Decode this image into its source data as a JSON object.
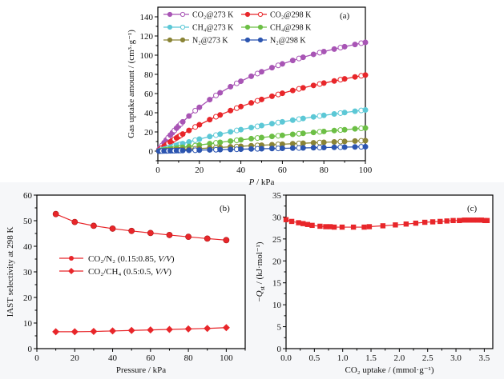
{
  "chart_data": [
    {
      "panel": "a",
      "type": "line",
      "panel_label": "(a)",
      "xlabel_italic": "P",
      "xlabel_rest": " / kPa",
      "ylabel": "Gas uptake amount / (cm³·g⁻¹)",
      "xlim": [
        0,
        100
      ],
      "ylim": [
        -10,
        150
      ],
      "xticks": [
        0,
        20,
        40,
        60,
        80,
        100
      ],
      "yticks": [
        0,
        20,
        40,
        60,
        80,
        100,
        120,
        140
      ],
      "legend_position": "top-left",
      "series": [
        {
          "name": "CO₂@273 K",
          "color": "#a855b5",
          "fit": {
            "qmax": 180,
            "b": 0.017
          },
          "filled_marker": true
        },
        {
          "name": "CO₂@298 K",
          "color": "#e8262a",
          "fit": {
            "qmax": 150,
            "b": 0.0112
          },
          "filled_marker": true
        },
        {
          "name": "CH₄@273 K",
          "color": "#5cc8d6",
          "fit": {
            "qmax": 110,
            "b": 0.0064
          },
          "filled_marker": true
        },
        {
          "name": "CH₄@298 K",
          "color": "#6cbf45",
          "fit": {
            "qmax": 80,
            "b": 0.0043
          },
          "filled_marker": true
        },
        {
          "name": "N₂@273 K",
          "color": "#8a8436",
          "fit": {
            "qmax": 50,
            "b": 0.0028
          },
          "filled_marker": true
        },
        {
          "name": "N₂@298 K",
          "color": "#2c55b0",
          "fit": {
            "qmax": 30,
            "b": 0.0018
          },
          "filled_marker": true
        }
      ],
      "x": [
        0.5,
        1,
        2,
        3,
        4,
        5,
        6,
        7,
        8,
        9,
        10,
        11,
        12,
        15,
        18,
        20,
        25,
        28,
        30,
        35,
        38,
        40,
        45,
        48,
        50,
        55,
        58,
        60,
        65,
        68,
        70,
        75,
        78,
        80,
        85,
        88,
        90,
        95,
        98,
        100
      ]
    },
    {
      "panel": "b",
      "type": "line",
      "panel_label": "(b)",
      "xlabel": "Pressure / kPa",
      "ylabel": "IAST selectivity at 298 K",
      "xlim": [
        0,
        110
      ],
      "ylim": [
        0,
        60
      ],
      "xticks": [
        0,
        20,
        40,
        60,
        80,
        100
      ],
      "yticks": [
        0,
        10,
        20,
        30,
        40,
        50,
        60
      ],
      "legend_position": "center-left",
      "x": [
        10,
        20,
        30,
        40,
        50,
        60,
        70,
        80,
        90,
        100
      ],
      "series": [
        {
          "name": "CO₂/N₂ (0.15:0.85, V/V)",
          "label_main": "CO₂/N₂ (0.15:0.85, ",
          "label_italic": "V/V",
          "label_end": ")",
          "marker": "circle",
          "color": "#e8262a",
          "values": [
            52.6,
            49.5,
            48.0,
            46.9,
            46.0,
            45.2,
            44.4,
            43.7,
            43.0,
            42.4
          ]
        },
        {
          "name": "CO₂/CH₄ (0.5:0.5, V/V)",
          "label_main": "CO₂/CH₄ (0.5:0.5, ",
          "label_italic": "V/V",
          "label_end": ")",
          "marker": "diamond",
          "color": "#e8262a",
          "values": [
            6.6,
            6.6,
            6.7,
            6.9,
            7.1,
            7.3,
            7.5,
            7.7,
            7.9,
            8.2
          ]
        }
      ]
    },
    {
      "panel": "c",
      "type": "line",
      "panel_label": "(c)",
      "xlabel": "CO₂ uptake / (mmol·g⁻¹)",
      "ylabel_pre": "−",
      "ylabel_italic": "Q",
      "ylabel_sub": "st",
      "ylabel_rest": " / (kJ·mol⁻¹)",
      "xlim": [
        0,
        3.65
      ],
      "ylim": [
        0,
        35
      ],
      "xticks": [
        0.0,
        0.5,
        1.0,
        1.5,
        2.0,
        2.5,
        3.0,
        3.5
      ],
      "xtick_labels": [
        "0.0",
        "0.5",
        "1.0",
        "1.5",
        "2.0",
        "2.5",
        "3.0",
        "3.5"
      ],
      "yticks": [
        0,
        5,
        10,
        15,
        20,
        25,
        30,
        35
      ],
      "series": [
        {
          "name": "Qst",
          "marker": "square",
          "color": "#e8262a",
          "x": [
            0.0,
            0.1,
            0.22,
            0.3,
            0.38,
            0.46,
            0.6,
            0.7,
            0.78,
            0.85,
            0.99,
            1.19,
            1.38,
            1.47,
            1.71,
            1.93,
            2.12,
            2.29,
            2.45,
            2.59,
            2.72,
            2.84,
            2.95,
            3.06,
            3.15,
            3.23,
            3.31,
            3.38,
            3.45,
            3.51,
            3.55
          ],
          "values": [
            29.4,
            29.0,
            28.7,
            28.5,
            28.3,
            28.1,
            27.9,
            27.8,
            27.8,
            27.7,
            27.7,
            27.7,
            27.7,
            27.8,
            28.0,
            28.2,
            28.4,
            28.6,
            28.8,
            28.9,
            29.0,
            29.1,
            29.2,
            29.2,
            29.3,
            29.3,
            29.3,
            29.3,
            29.3,
            29.2,
            29.2
          ]
        }
      ]
    }
  ]
}
